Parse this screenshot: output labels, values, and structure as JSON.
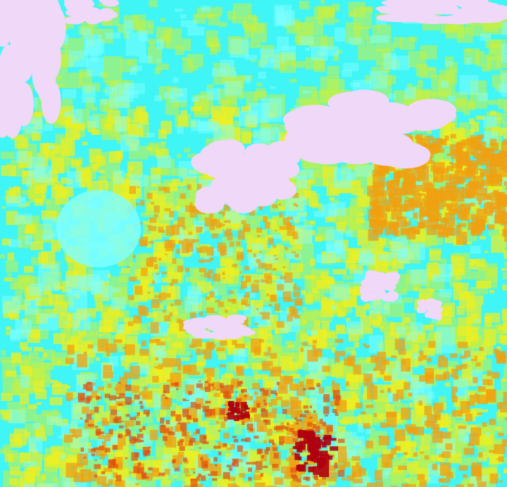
{
  "image": {
    "kind": "false-color raster",
    "palette": {
      "cyan": "#40f5f5",
      "light_cyan": "#80ffff",
      "yellow": "#f0f020",
      "yellow_green": "#c8f040",
      "orange": "#f0a010",
      "red_orange": "#e05010",
      "dark_red": "#b00010",
      "lavender": "#f0d8f8"
    }
  }
}
